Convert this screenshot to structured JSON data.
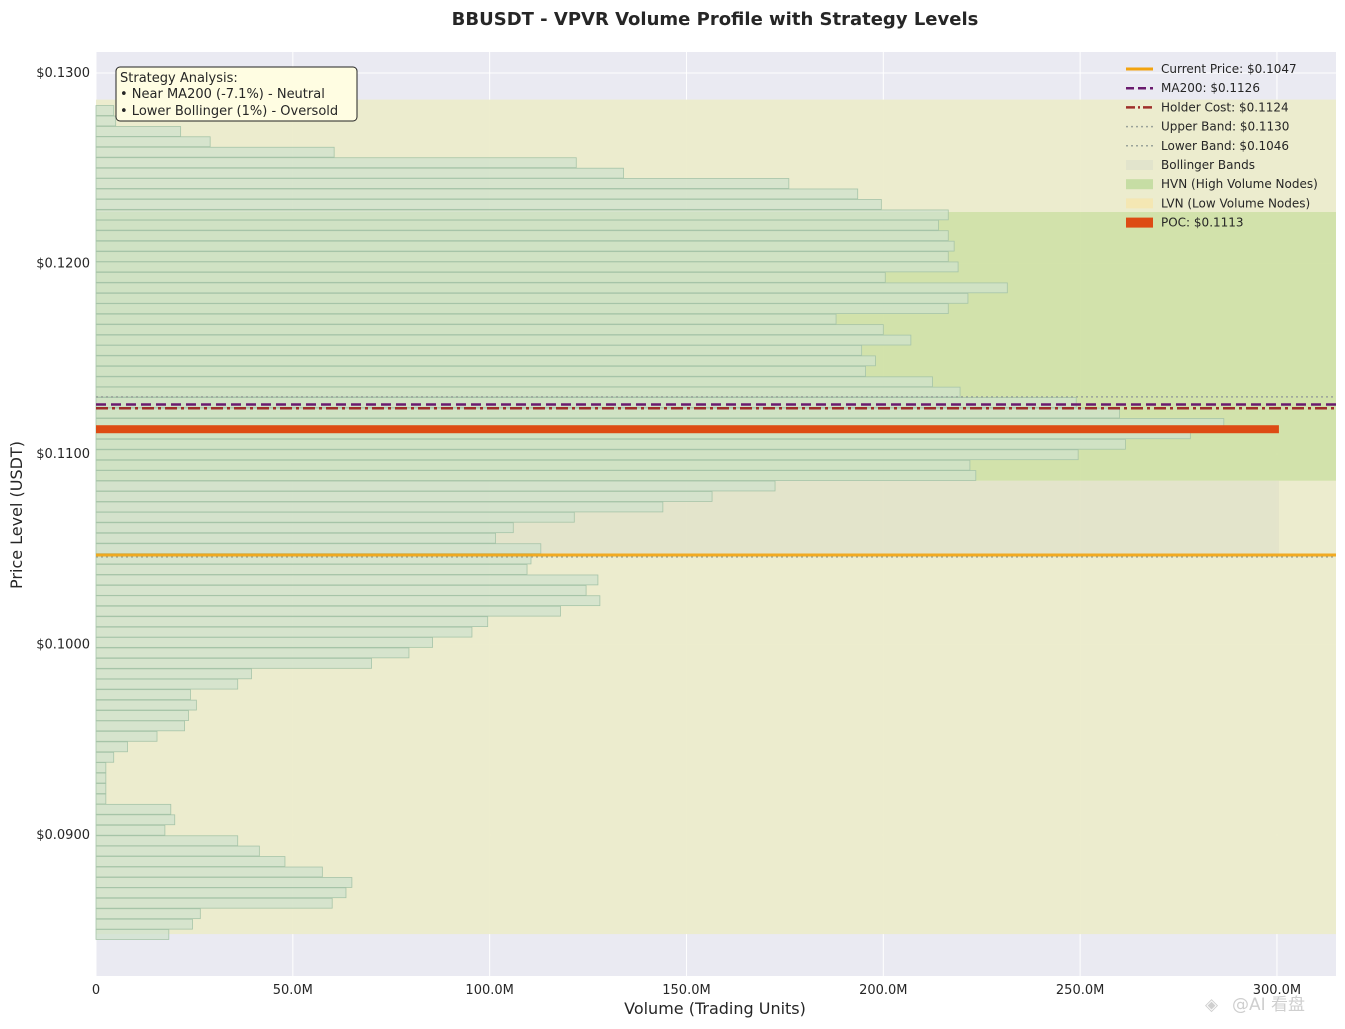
{
  "chart_data": {
    "type": "bar",
    "orientation": "horizontal",
    "title": "BBUSDT - VPVR Volume Profile with Strategy Levels",
    "xlabel": "Volume (Trading Units)",
    "ylabel": "Price Level (USDT)",
    "xlim": [
      0,
      315
    ],
    "ylim": [
      0.0826,
      0.1311
    ],
    "x_ticks": [
      {
        "value": 0,
        "label": "0"
      },
      {
        "value": 50,
        "label": "50.0M"
      },
      {
        "value": 100,
        "label": "100.0M"
      },
      {
        "value": 150,
        "label": "150.0M"
      },
      {
        "value": 200,
        "label": "200.0M"
      },
      {
        "value": 250,
        "label": "250.0M"
      },
      {
        "value": 300,
        "label": "300.0M"
      }
    ],
    "y_ticks": [
      {
        "value": 0.13,
        "label": "$0.1300"
      },
      {
        "value": 0.12,
        "label": "$0.1200"
      },
      {
        "value": 0.11,
        "label": "$0.1100"
      },
      {
        "value": 0.1,
        "label": "$0.1000"
      },
      {
        "value": 0.09,
        "label": "$0.0900"
      }
    ],
    "grid": true,
    "legend_position": "top-right",
    "bins": [
      {
        "price": 0.08478,
        "volume": 18.5
      },
      {
        "price": 0.08532,
        "volume": 24.5
      },
      {
        "price": 0.08587,
        "volume": 26.5
      },
      {
        "price": 0.08642,
        "volume": 60
      },
      {
        "price": 0.08697,
        "volume": 63.5
      },
      {
        "price": 0.08751,
        "volume": 65
      },
      {
        "price": 0.08806,
        "volume": 57.5
      },
      {
        "price": 0.08861,
        "volume": 48
      },
      {
        "price": 0.08916,
        "volume": 41.5
      },
      {
        "price": 0.0897,
        "volume": 36
      },
      {
        "price": 0.09025,
        "volume": 17.5
      },
      {
        "price": 0.0908,
        "volume": 20
      },
      {
        "price": 0.09135,
        "volume": 19
      },
      {
        "price": 0.09189,
        "volume": 2.5
      },
      {
        "price": 0.09244,
        "volume": 2.5
      },
      {
        "price": 0.09299,
        "volume": 2.5
      },
      {
        "price": 0.09354,
        "volume": 2.5
      },
      {
        "price": 0.09408,
        "volume": 4.5
      },
      {
        "price": 0.09463,
        "volume": 8
      },
      {
        "price": 0.09518,
        "volume": 15.5
      },
      {
        "price": 0.09573,
        "volume": 22.5
      },
      {
        "price": 0.09627,
        "volume": 23.5
      },
      {
        "price": 0.09682,
        "volume": 25.5
      },
      {
        "price": 0.09737,
        "volume": 24
      },
      {
        "price": 0.09792,
        "volume": 36
      },
      {
        "price": 0.09846,
        "volume": 39.5
      },
      {
        "price": 0.09901,
        "volume": 70
      },
      {
        "price": 0.09956,
        "volume": 79.5
      },
      {
        "price": 0.10011,
        "volume": 85.5
      },
      {
        "price": 0.10065,
        "volume": 95.5
      },
      {
        "price": 0.1012,
        "volume": 99.5
      },
      {
        "price": 0.10175,
        "volume": 118
      },
      {
        "price": 0.1023,
        "volume": 128
      },
      {
        "price": 0.10284,
        "volume": 124.5
      },
      {
        "price": 0.10339,
        "volume": 127.5
      },
      {
        "price": 0.10394,
        "volume": 109.5
      },
      {
        "price": 0.10449,
        "volume": 110.5
      },
      {
        "price": 0.10503,
        "volume": 113
      },
      {
        "price": 0.10558,
        "volume": 101.5
      },
      {
        "price": 0.10613,
        "volume": 106
      },
      {
        "price": 0.10668,
        "volume": 121.5
      },
      {
        "price": 0.10722,
        "volume": 144
      },
      {
        "price": 0.10777,
        "volume": 156.5
      },
      {
        "price": 0.10832,
        "volume": 172.5
      },
      {
        "price": 0.10887,
        "volume": 223.5
      },
      {
        "price": 0.10941,
        "volume": 222
      },
      {
        "price": 0.10996,
        "volume": 249.5
      },
      {
        "price": 0.11051,
        "volume": 261.5
      },
      {
        "price": 0.11106,
        "volume": 278
      },
      {
        "price": 0.1116,
        "volume": 286.5
      },
      {
        "price": 0.11215,
        "volume": 260
      },
      {
        "price": 0.1127,
        "volume": 249
      },
      {
        "price": 0.11325,
        "volume": 219.5
      },
      {
        "price": 0.11379,
        "volume": 212.5
      },
      {
        "price": 0.11434,
        "volume": 195.5
      },
      {
        "price": 0.11489,
        "volume": 198
      },
      {
        "price": 0.11544,
        "volume": 194.5
      },
      {
        "price": 0.11598,
        "volume": 207
      },
      {
        "price": 0.11653,
        "volume": 200
      },
      {
        "price": 0.11708,
        "volume": 188
      },
      {
        "price": 0.11763,
        "volume": 216.5
      },
      {
        "price": 0.11817,
        "volume": 221.5
      },
      {
        "price": 0.11872,
        "volume": 231.5
      },
      {
        "price": 0.11927,
        "volume": 200.5
      },
      {
        "price": 0.11982,
        "volume": 219
      },
      {
        "price": 0.12036,
        "volume": 216.5
      },
      {
        "price": 0.12091,
        "volume": 218
      },
      {
        "price": 0.12146,
        "volume": 216.5
      },
      {
        "price": 0.12201,
        "volume": 214
      },
      {
        "price": 0.12255,
        "volume": 216.5
      },
      {
        "price": 0.1231,
        "volume": 199.5
      },
      {
        "price": 0.12365,
        "volume": 193.5
      },
      {
        "price": 0.1242,
        "volume": 176
      },
      {
        "price": 0.12474,
        "volume": 134
      },
      {
        "price": 0.12529,
        "volume": 122
      },
      {
        "price": 0.12584,
        "volume": 60.5
      },
      {
        "price": 0.12639,
        "volume": 29
      },
      {
        "price": 0.12693,
        "volume": 21.5
      },
      {
        "price": 0.12748,
        "volume": 5
      },
      {
        "price": 0.12803,
        "volume": 4.5
      }
    ],
    "bin_height": 0.00052,
    "poc": {
      "price": 0.1113,
      "volume": 300.5
    },
    "levels": {
      "current_price": 0.1047,
      "ma200": 0.1126,
      "holder_cost": 0.1124,
      "upper_band": 0.113,
      "lower_band": 0.1046
    },
    "bands": {
      "bollinger": [
        0.0848,
        0.1286
      ],
      "hvn": [
        0.1086,
        0.1227
      ],
      "lvn": [
        0.0848,
        0.1286
      ],
      "lvn_shade_volume_max": 300.5,
      "lvn_shade_price": [
        0.1047,
        0.1086
      ]
    },
    "legend": [
      {
        "label": "Current Price: $0.1047",
        "kind": "line",
        "color": "#f2a30f",
        "style": "solid"
      },
      {
        "label": "MA200: $0.1126",
        "kind": "line",
        "color": "#6a1b6e",
        "style": "dashed"
      },
      {
        "label": "Holder Cost: $0.1124",
        "kind": "line",
        "color": "#9e2f2a",
        "style": "dashdot"
      },
      {
        "label": "Upper Band: $0.1130",
        "kind": "line",
        "color": "#9aa39a",
        "style": "dotted"
      },
      {
        "label": "Lower Band: $0.1046",
        "kind": "line",
        "color": "#9aa39a",
        "style": "dotted"
      },
      {
        "label": "Bollinger Bands",
        "kind": "patch",
        "color": "#e2e4cc"
      },
      {
        "label": "HVN (High Volume Nodes)",
        "kind": "patch",
        "color": "#c6dda4"
      },
      {
        "label": "LVN (Low Volume Nodes)",
        "kind": "patch",
        "color": "#f4e7b3"
      },
      {
        "label": "POC: $0.1113",
        "kind": "patch",
        "color": "#dd4b14"
      }
    ],
    "annotation": {
      "lines": [
        "Strategy Analysis:",
        "• Near MA200 (-7.1%) - Neutral",
        "• Lower Bollinger (1%) - Oversold"
      ]
    },
    "colors": {
      "plot_background": "#eaeaf2",
      "band_fill": "#ececcb",
      "hvn_fill": "#c9df9f",
      "bar_fill": "#cfe1cc",
      "bar_edge": "#a6c4a8",
      "poc": "#dd4b14",
      "current_price": "#f2a30f",
      "ma200": "#6a1b6e",
      "holder_cost": "#9e2f2a",
      "band_line": "#9aa39a"
    }
  },
  "watermark": {
    "text": "@AI 看盘"
  }
}
